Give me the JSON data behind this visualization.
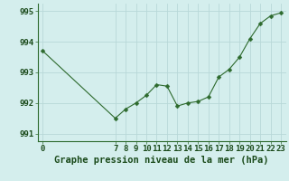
{
  "x": [
    0,
    7,
    8,
    9,
    10,
    11,
    12,
    13,
    14,
    15,
    16,
    17,
    18,
    19,
    20,
    21,
    22,
    23
  ],
  "y": [
    993.7,
    991.5,
    991.8,
    992.0,
    992.25,
    992.6,
    992.55,
    991.9,
    992.0,
    992.05,
    992.2,
    992.85,
    993.1,
    993.5,
    994.1,
    994.6,
    994.85,
    994.95
  ],
  "line_color": "#2d6a2d",
  "marker_color": "#2d6a2d",
  "bg_color": "#d4eeed",
  "grid_color": "#b8d8d8",
  "xlabel": "Graphe pression niveau de la mer (hPa)",
  "xlabel_fontsize": 7.5,
  "ylim": [
    990.75,
    995.25
  ],
  "yticks": [
    991,
    992,
    993,
    994,
    995
  ],
  "xticks": [
    0,
    7,
    8,
    9,
    10,
    11,
    12,
    13,
    14,
    15,
    16,
    17,
    18,
    19,
    20,
    21,
    22,
    23
  ],
  "tick_fontsize": 6.5,
  "marker_size": 2.5,
  "xlim": [
    -0.5,
    23.5
  ]
}
